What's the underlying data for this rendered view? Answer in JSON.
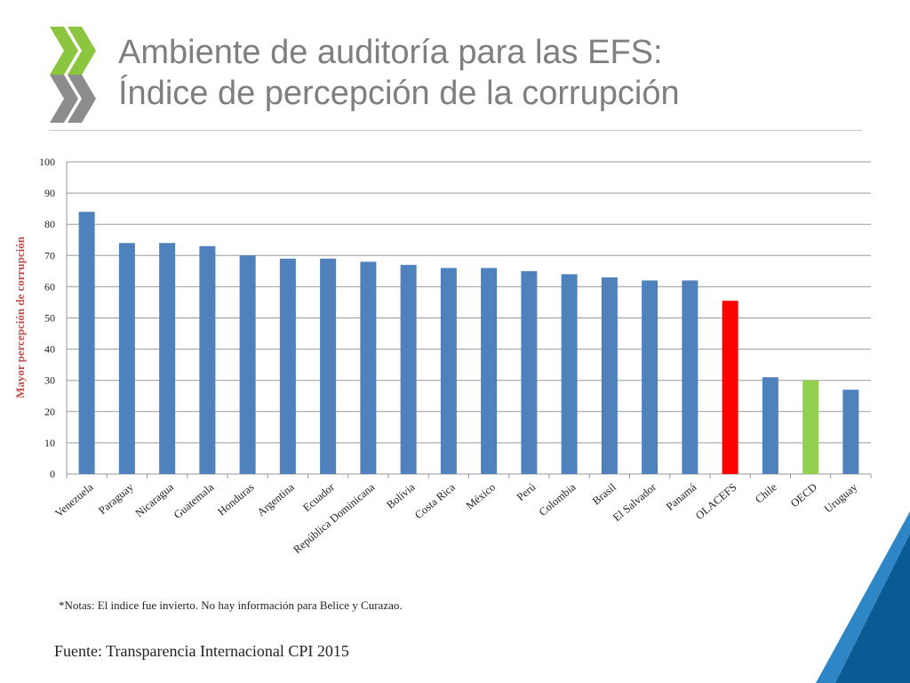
{
  "slide": {
    "title_line1": "Ambiente de auditoría para las EFS:",
    "title_line2": "Índice de percepción de la corrupción",
    "note": "*Notas: El indice fue invierto. No  hay información para Belice y Curazao.",
    "source": "Fuente: Transparencia Internacional CPI 2015",
    "logo_icon": "double-chevron-logo-icon",
    "colors": {
      "title": "#7f7f7f",
      "logo_green": "#8cc63f",
      "logo_gray": "#8c8c8c",
      "corner_blue": "#0b5a93",
      "corner_light_blue": "#2f86c6"
    }
  },
  "chart_data": {
    "type": "bar",
    "title": "",
    "xlabel": "",
    "ylabel": "Mayor percepción de corrupción",
    "ylim": [
      0,
      100
    ],
    "yticks": [
      0,
      10,
      20,
      30,
      40,
      50,
      60,
      70,
      80,
      90,
      100
    ],
    "grid": true,
    "legend": "none",
    "categories": [
      "Venezuela",
      "Paraguay",
      "Nicaragua",
      "Guatemala",
      "Honduras",
      "Argentina",
      "Ecuador",
      "República Dominicana",
      "Bolivia",
      "Costa Rica",
      "México",
      "Perú",
      "Colombia",
      "Brasil",
      "El Salvador",
      "Panamá",
      "OLACEFS",
      "Chile",
      "OECD",
      "Uruguay"
    ],
    "values": [
      84,
      74,
      74,
      73,
      70,
      69,
      69,
      68,
      67,
      66,
      66,
      65,
      64,
      63,
      62,
      62,
      55.5,
      31,
      30,
      27
    ],
    "colors": [
      "#4f81bd",
      "#4f81bd",
      "#4f81bd",
      "#4f81bd",
      "#4f81bd",
      "#4f81bd",
      "#4f81bd",
      "#4f81bd",
      "#4f81bd",
      "#4f81bd",
      "#4f81bd",
      "#4f81bd",
      "#4f81bd",
      "#4f81bd",
      "#4f81bd",
      "#4f81bd",
      "#ff0000",
      "#4f81bd",
      "#92d050",
      "#4f81bd"
    ]
  }
}
